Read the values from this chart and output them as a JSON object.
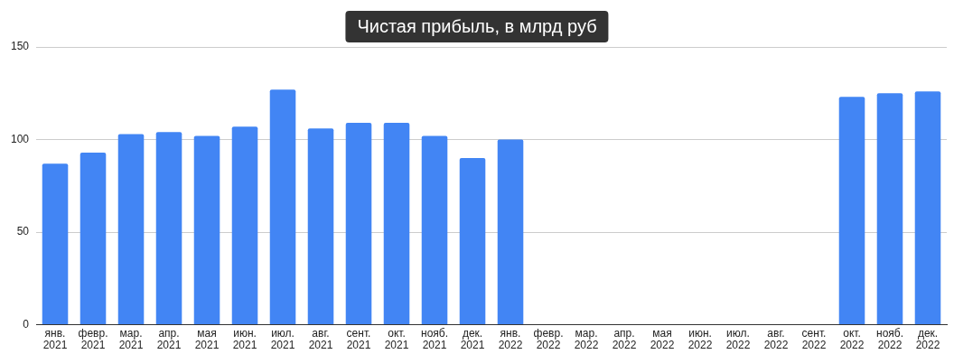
{
  "chart_data": {
    "type": "bar",
    "title": "Чистая прибыль, в млрд руб",
    "categories": [
      "янв.\n2021",
      "февр.\n2021",
      "мар.\n2021",
      "апр.\n2021",
      "мая\n2021",
      "июн.\n2021",
      "июл.\n2021",
      "авг.\n2021",
      "сент.\n2021",
      "окт.\n2021",
      "нояб.\n2021",
      "дек.\n2021",
      "янв.\n2022",
      "февр.\n2022",
      "мар.\n2022",
      "апр.\n2022",
      "мая\n2022",
      "июн.\n2022",
      "июл.\n2022",
      "авг.\n2022",
      "сент.\n2022",
      "окт.\n2022",
      "нояб.\n2022",
      "дек.\n2022"
    ],
    "values": [
      87,
      93,
      103,
      104,
      102,
      107,
      127,
      106,
      109,
      109,
      102,
      90,
      100,
      null,
      null,
      null,
      null,
      null,
      null,
      null,
      null,
      123,
      125,
      126
    ],
    "color": "#4285f4",
    "ylim": [
      0,
      150
    ],
    "yticks": [
      0,
      50,
      100,
      150
    ],
    "grid": "y",
    "legend": false
  }
}
